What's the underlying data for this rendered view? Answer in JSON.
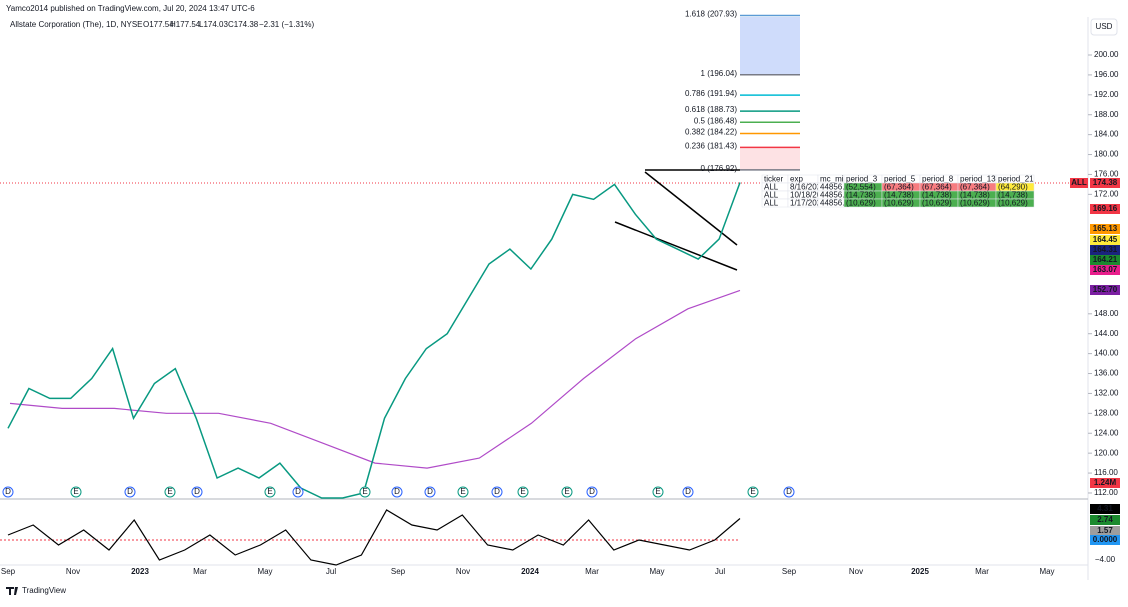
{
  "header": {
    "published": "Yamco2014 published on TradingView.com, Jul 20, 2024 13:47 UTC-6",
    "symbol": "Allstate Corporation (The), 1D, NYSE",
    "open": "O177.54",
    "high": "H177.54",
    "low": "L174.03",
    "close": "C174.38",
    "change": "−2.31 (−1.31%)"
  },
  "currency": "USD",
  "price_axis": [
    {
      "value": 200,
      "label": "200.00"
    },
    {
      "value": 196,
      "label": "196.00"
    },
    {
      "value": 192,
      "label": "192.00"
    },
    {
      "value": 188,
      "label": "188.00"
    },
    {
      "value": 184,
      "label": "184.00"
    },
    {
      "value": 180,
      "label": "180.00"
    },
    {
      "value": 176,
      "label": "176.00"
    },
    {
      "value": 172,
      "label": "172.00"
    },
    {
      "value": 148,
      "label": "148.00"
    },
    {
      "value": 144,
      "label": "144.00"
    },
    {
      "value": 140,
      "label": "140.00"
    },
    {
      "value": 136,
      "label": "136.00"
    },
    {
      "value": 132,
      "label": "132.00"
    },
    {
      "value": 128,
      "label": "128.00"
    },
    {
      "value": 124,
      "label": "124.00"
    },
    {
      "value": 120,
      "label": "120.00"
    },
    {
      "value": 116,
      "label": "116.00"
    },
    {
      "value": 112,
      "label": "112.00"
    }
  ],
  "badges": [
    {
      "label": "ALL",
      "color": "#f23645"
    },
    {
      "label": "174.38",
      "color": "#f23645"
    },
    {
      "label": "169.16",
      "color": "#f23645"
    },
    {
      "label": "165.13",
      "color": "#ff9800"
    },
    {
      "label": "164.45",
      "color": "#ffeb3b"
    },
    {
      "label": "164.31",
      "color": "#1a237e"
    },
    {
      "label": "164.21",
      "color": "#1b8a2e"
    },
    {
      "label": "163.07",
      "color": "#e91e8c"
    },
    {
      "label": "152.70",
      "color": "#7b1fa2"
    },
    {
      "label": "1.24M",
      "color": "#f23645"
    },
    {
      "label": "4.31",
      "color": "#000000"
    },
    {
      "label": "2.74",
      "color": "#1b8a2e"
    },
    {
      "label": "1.57",
      "color": "#9e9e9e"
    },
    {
      "label": "0.0000",
      "color": "#2196f3"
    }
  ],
  "osc_axis": "−4.00",
  "fib_levels": [
    {
      "label": "1.618 (207.93)",
      "value": 207.93,
      "color": "#5b9bd5"
    },
    {
      "label": "1 (196.04)",
      "value": 196.04,
      "color": "#787b86"
    },
    {
      "label": "0.786 (191.94)",
      "value": 191.94,
      "color": "#00bcd4"
    },
    {
      "label": "0.618 (188.73)",
      "value": 188.73,
      "color": "#089981"
    },
    {
      "label": "0.5 (186.48)",
      "value": 186.48,
      "color": "#4caf50"
    },
    {
      "label": "0.382 (184.22)",
      "value": 184.22,
      "color": "#ff9800"
    },
    {
      "label": "0.236 (181.43)",
      "value": 181.43,
      "color": "#f23645"
    },
    {
      "label": "0 (176.92)",
      "value": 176.92,
      "color": "#787b86"
    }
  ],
  "price_path": [
    125,
    133,
    131,
    131,
    135,
    141,
    127,
    134,
    137,
    127,
    115,
    117,
    115,
    118,
    113,
    111,
    111,
    112,
    127,
    135,
    141,
    144,
    151,
    158,
    161,
    157,
    163,
    172,
    171,
    174,
    168,
    163,
    161,
    159,
    163,
    174.38
  ],
  "ma_long": [
    130,
    129,
    129,
    128,
    128,
    126,
    122,
    118,
    117,
    119,
    126,
    135,
    143,
    149,
    152.7
  ],
  "oscillator": [
    1,
    3,
    -1,
    2,
    -2,
    4,
    -4,
    -2,
    1,
    -3,
    -1,
    2,
    -4,
    -5,
    -3,
    6,
    3,
    2,
    5,
    -1,
    -2,
    1,
    -1,
    4,
    -2,
    0,
    -1,
    -2,
    0,
    4.31
  ],
  "events": [
    "D",
    "E",
    "D",
    "E",
    "D",
    "E",
    "D",
    "E",
    "D",
    "D",
    "E",
    "D",
    "E",
    "E",
    "D",
    "E",
    "D",
    "E",
    "D"
  ],
  "time_axis": [
    "Sep",
    "Nov",
    "2023",
    "Mar",
    "May",
    "Jul",
    "Sep",
    "Nov",
    "2024",
    "Mar",
    "May",
    "Jul",
    "Sep",
    "Nov",
    "2025",
    "Mar",
    "May"
  ],
  "table": {
    "headers": [
      "ticker",
      "exp",
      "mc_mil",
      "period_3",
      "period_5",
      "period_8",
      "period_13",
      "period_21"
    ],
    "rows": [
      [
        "ALL",
        "8/16/2024",
        "44856.77",
        "(52,554)",
        "(67,364)",
        "(67,364)",
        "(67,364)",
        "(64,290)"
      ],
      [
        "ALL",
        "10/18/2024",
        "44856.77",
        "(14,738)",
        "(14,738)",
        "(14,738)",
        "(14,738)",
        "(14,738)"
      ],
      [
        "ALL",
        "1/17/2025",
        "44856.77",
        "(10,629)",
        "(10,629)",
        "(10,629)",
        "(10,629)",
        "(10,629)"
      ]
    ]
  },
  "footer": "TradingView"
}
